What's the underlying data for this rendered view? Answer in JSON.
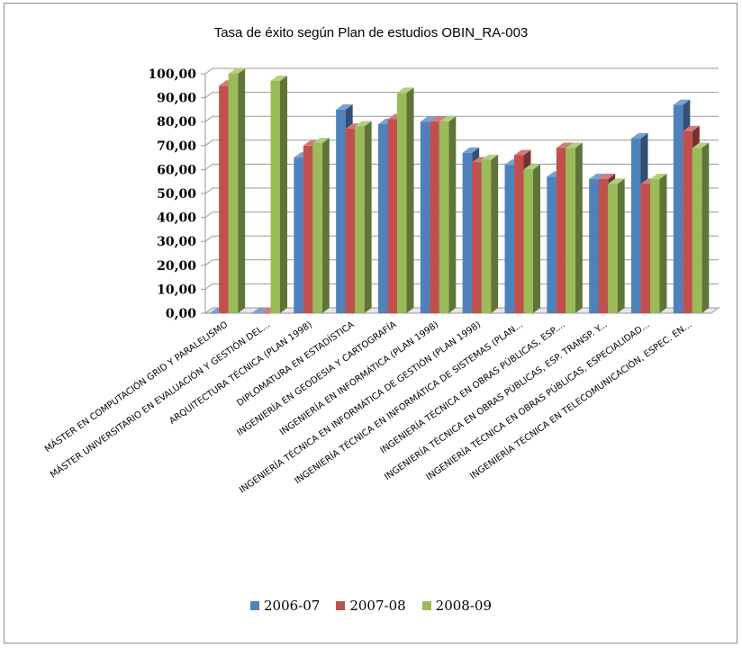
{
  "chart_data": {
    "type": "bar",
    "title": "Tasa de éxito según Plan de estudios  OBIN_RA-003",
    "categories": [
      "MÁSTER EN COMPUTACIÓN GRID Y PARALELISMO",
      "MÁSTER UNIVERSITARIO EN EVALUACIÓN Y GESTIÓN DEL...",
      "ARQUITECTURA TÉCNICA (PLAN 1998)",
      "DIPLOMATURA EN ESTADÍSTICA",
      "INGENIERÍA EN GEODESIA Y CARTOGRAFÍA",
      "INGENIERÍA EN INFORMÁTICA (PLAN 1998)",
      "INGENIERÍA TÉCNICA EN INFORMÁTICA DE GESTIÓN (PLAN 1998)",
      "INGENIERÍA TÉCNICA EN INFORMÁTICA DE SISTEMAS (PLAN...",
      "INGENIERÍA TÉCNICA EN OBRAS PÚBLICAS, ESP....",
      "INGENIERÍA TÉCNICA EN OBRAS PÚBLICAS, ESP. TRANSP. Y...",
      "INGENIERÍA TÉCNICA EN OBRAS PÚBLICAS, ESPECIALIDAD...",
      "INGENIERÍA TÉCNICA EN TELECOMUNICACIÓN, ESPEC. EN..."
    ],
    "series": [
      {
        "name": "2006-07",
        "color": "#4f81bd",
        "values": [
          0,
          0,
          65,
          85,
          79,
          80,
          67,
          62,
          57,
          56,
          73,
          87
        ]
      },
      {
        "name": "2007-08",
        "color": "#c0504d",
        "values": [
          95,
          0,
          70,
          77,
          81,
          80,
          63,
          66,
          69,
          56,
          54,
          76
        ]
      },
      {
        "name": "2008-09",
        "color": "#9bbb59",
        "values": [
          100,
          97,
          71,
          78,
          92,
          80,
          64,
          60,
          69,
          54,
          56,
          69
        ]
      }
    ],
    "ylim": [
      0,
      100
    ],
    "yticks": [
      "0,00",
      "10,00",
      "20,00",
      "30,00",
      "40,00",
      "50,00",
      "60,00",
      "70,00",
      "80,00",
      "90,00",
      "100,00"
    ],
    "grid": true,
    "legend_position": "bottom"
  }
}
